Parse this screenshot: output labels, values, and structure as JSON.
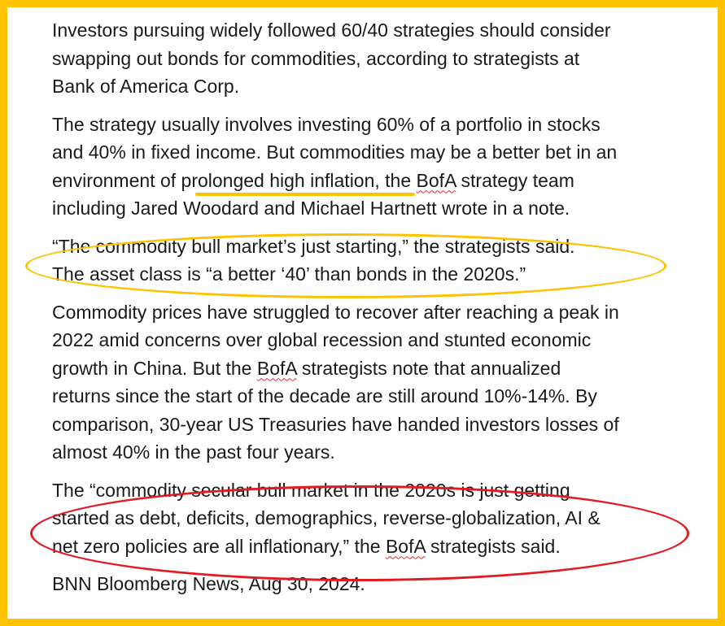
{
  "paragraphs": [
    {
      "lines": [
        "Investors pursuing widely followed 60/40 strategies should consider",
        "swapping out bonds for commodities, according to strategists at",
        "Bank of America Corp."
      ]
    },
    {
      "lines": {
        "l1": "The strategy usually involves investing 60% of a portfolio in stocks",
        "l2": "and 40% in fixed income. But commodities may be a better bet in an",
        "l3a": "environment of ",
        "l3b": "prolonged high inflation",
        "l3c": ", the ",
        "l3d": "BofA",
        "l3e": " strategy team",
        "l4": "including Jared Woodard and Michael Hartnett wrote in a note."
      }
    },
    {
      "lines": [
        "“The commodity bull market’s just starting,” the strategists said.",
        "The asset class is “a better ‘40’ than bonds in the 2020s.”"
      ]
    },
    {
      "lines": {
        "l1": "Commodity prices have struggled to recover after reaching a peak in",
        "l2": "2022 amid concerns over global recession and stunted economic",
        "l3a": "growth in China. But the ",
        "l3b": "BofA",
        "l3c": " strategists note that annualized",
        "l4": "returns since the start of the decade are still around 10%-14%. By",
        "l5": "comparison, 30-year US Treasuries have handed investors losses of",
        "l6": "almost 40% in the past four years."
      }
    },
    {
      "lines": {
        "l1": "The “commodity secular bull market in the 2020s is just getting",
        "l2": "started as debt, deficits, demographics, reverse-globalization, AI &",
        "l3a": "net zero policies are all inflationary,” the ",
        "l3b": "BofA",
        "l3c": " strategists said."
      }
    },
    {
      "lines": [
        "BNN Bloomberg News, Aug 30, 2024."
      ]
    }
  ],
  "colors": {
    "frame": "#fdc300",
    "highlight": "#fdc300",
    "red_circle": "#e21b23"
  }
}
